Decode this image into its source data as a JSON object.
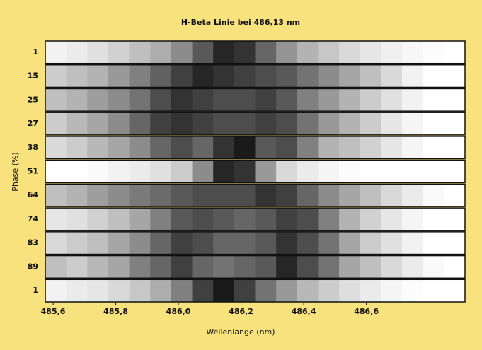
{
  "chart_data": {
    "type": "heatmap",
    "title": "H-Beta Linie bei 486,13 nm",
    "xlabel": "Wellenlänge (nm)",
    "ylabel": "Phase (%)",
    "categories": [
      "1",
      "15",
      "25",
      "27",
      "38",
      "51",
      "64",
      "74",
      "83",
      "89",
      "1"
    ],
    "bins": [
      485.575,
      485.642,
      485.709,
      485.776,
      485.843,
      485.91,
      485.977,
      486.044,
      486.111,
      486.178,
      486.245,
      486.312,
      486.379,
      486.446,
      486.513,
      486.58,
      486.647,
      486.714,
      486.781,
      486.848,
      486.915
    ],
    "values": [
      [
        95,
        92,
        88,
        82,
        75,
        68,
        55,
        35,
        15,
        20,
        40,
        58,
        70,
        78,
        85,
        90,
        94,
        97,
        99,
        100
      ],
      [
        80,
        75,
        70,
        60,
        50,
        38,
        25,
        15,
        20,
        25,
        30,
        35,
        45,
        55,
        65,
        75,
        85,
        95,
        100,
        100
      ],
      [
        75,
        70,
        62,
        55,
        45,
        30,
        20,
        25,
        30,
        30,
        25,
        35,
        50,
        60,
        70,
        80,
        88,
        95,
        100,
        100
      ],
      [
        80,
        72,
        65,
        55,
        40,
        25,
        20,
        25,
        30,
        30,
        25,
        30,
        45,
        60,
        70,
        80,
        90,
        96,
        100,
        100
      ],
      [
        85,
        80,
        72,
        65,
        55,
        40,
        30,
        40,
        20,
        10,
        35,
        30,
        50,
        70,
        75,
        82,
        90,
        96,
        100,
        100
      ],
      [
        100,
        100,
        98,
        95,
        92,
        88,
        80,
        55,
        15,
        20,
        60,
        85,
        92,
        96,
        99,
        100,
        100,
        100,
        100,
        100
      ],
      [
        75,
        70,
        62,
        55,
        48,
        42,
        35,
        30,
        30,
        30,
        20,
        25,
        40,
        55,
        65,
        75,
        85,
        92,
        98,
        100
      ],
      [
        90,
        88,
        82,
        75,
        65,
        50,
        35,
        30,
        35,
        40,
        35,
        25,
        30,
        50,
        70,
        82,
        90,
        96,
        100,
        100
      ],
      [
        85,
        80,
        75,
        65,
        55,
        40,
        25,
        30,
        40,
        40,
        35,
        20,
        30,
        45,
        65,
        80,
        88,
        95,
        100,
        100
      ],
      [
        75,
        80,
        72,
        65,
        50,
        40,
        25,
        40,
        45,
        40,
        35,
        15,
        30,
        45,
        65,
        75,
        85,
        92,
        98,
        100
      ],
      [
        95,
        92,
        90,
        85,
        78,
        68,
        50,
        25,
        10,
        25,
        45,
        60,
        72,
        80,
        87,
        92,
        96,
        99,
        100,
        100
      ]
    ],
    "colormap": "gray",
    "vlim": [
      0,
      100
    ],
    "xlim": [
      485.575,
      486.915
    ],
    "xticks": [
      {
        "value": 485.6,
        "label": "485,6"
      },
      {
        "value": 485.8,
        "label": "485,8"
      },
      {
        "value": 486.0,
        "label": "486,0"
      },
      {
        "value": 486.2,
        "label": "486,2"
      },
      {
        "value": 486.4,
        "label": "486,4"
      },
      {
        "value": 486.6,
        "label": "486,6"
      }
    ]
  }
}
